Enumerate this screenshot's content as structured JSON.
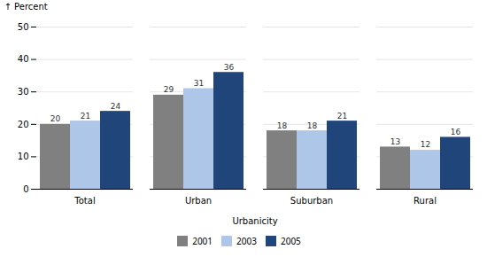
{
  "chart_data": {
    "type": "bar",
    "categories": [
      "Total",
      "Urban",
      "Suburban",
      "Rural"
    ],
    "series": [
      {
        "name": "2001",
        "color": "#808080",
        "values": [
          20,
          29,
          18,
          13
        ]
      },
      {
        "name": "2003",
        "color": "#aec6e8",
        "values": [
          21,
          31,
          18,
          12
        ]
      },
      {
        "name": "2005",
        "color": "#1f457a",
        "values": [
          24,
          36,
          21,
          16
        ]
      }
    ],
    "xlabel": "Urbanicity",
    "ylabel": "Percent",
    "ylim": [
      0,
      50
    ],
    "yticks": [
      0,
      10,
      20,
      30,
      40,
      50
    ],
    "grid": true,
    "data_labels": true,
    "legend": "bottom"
  }
}
